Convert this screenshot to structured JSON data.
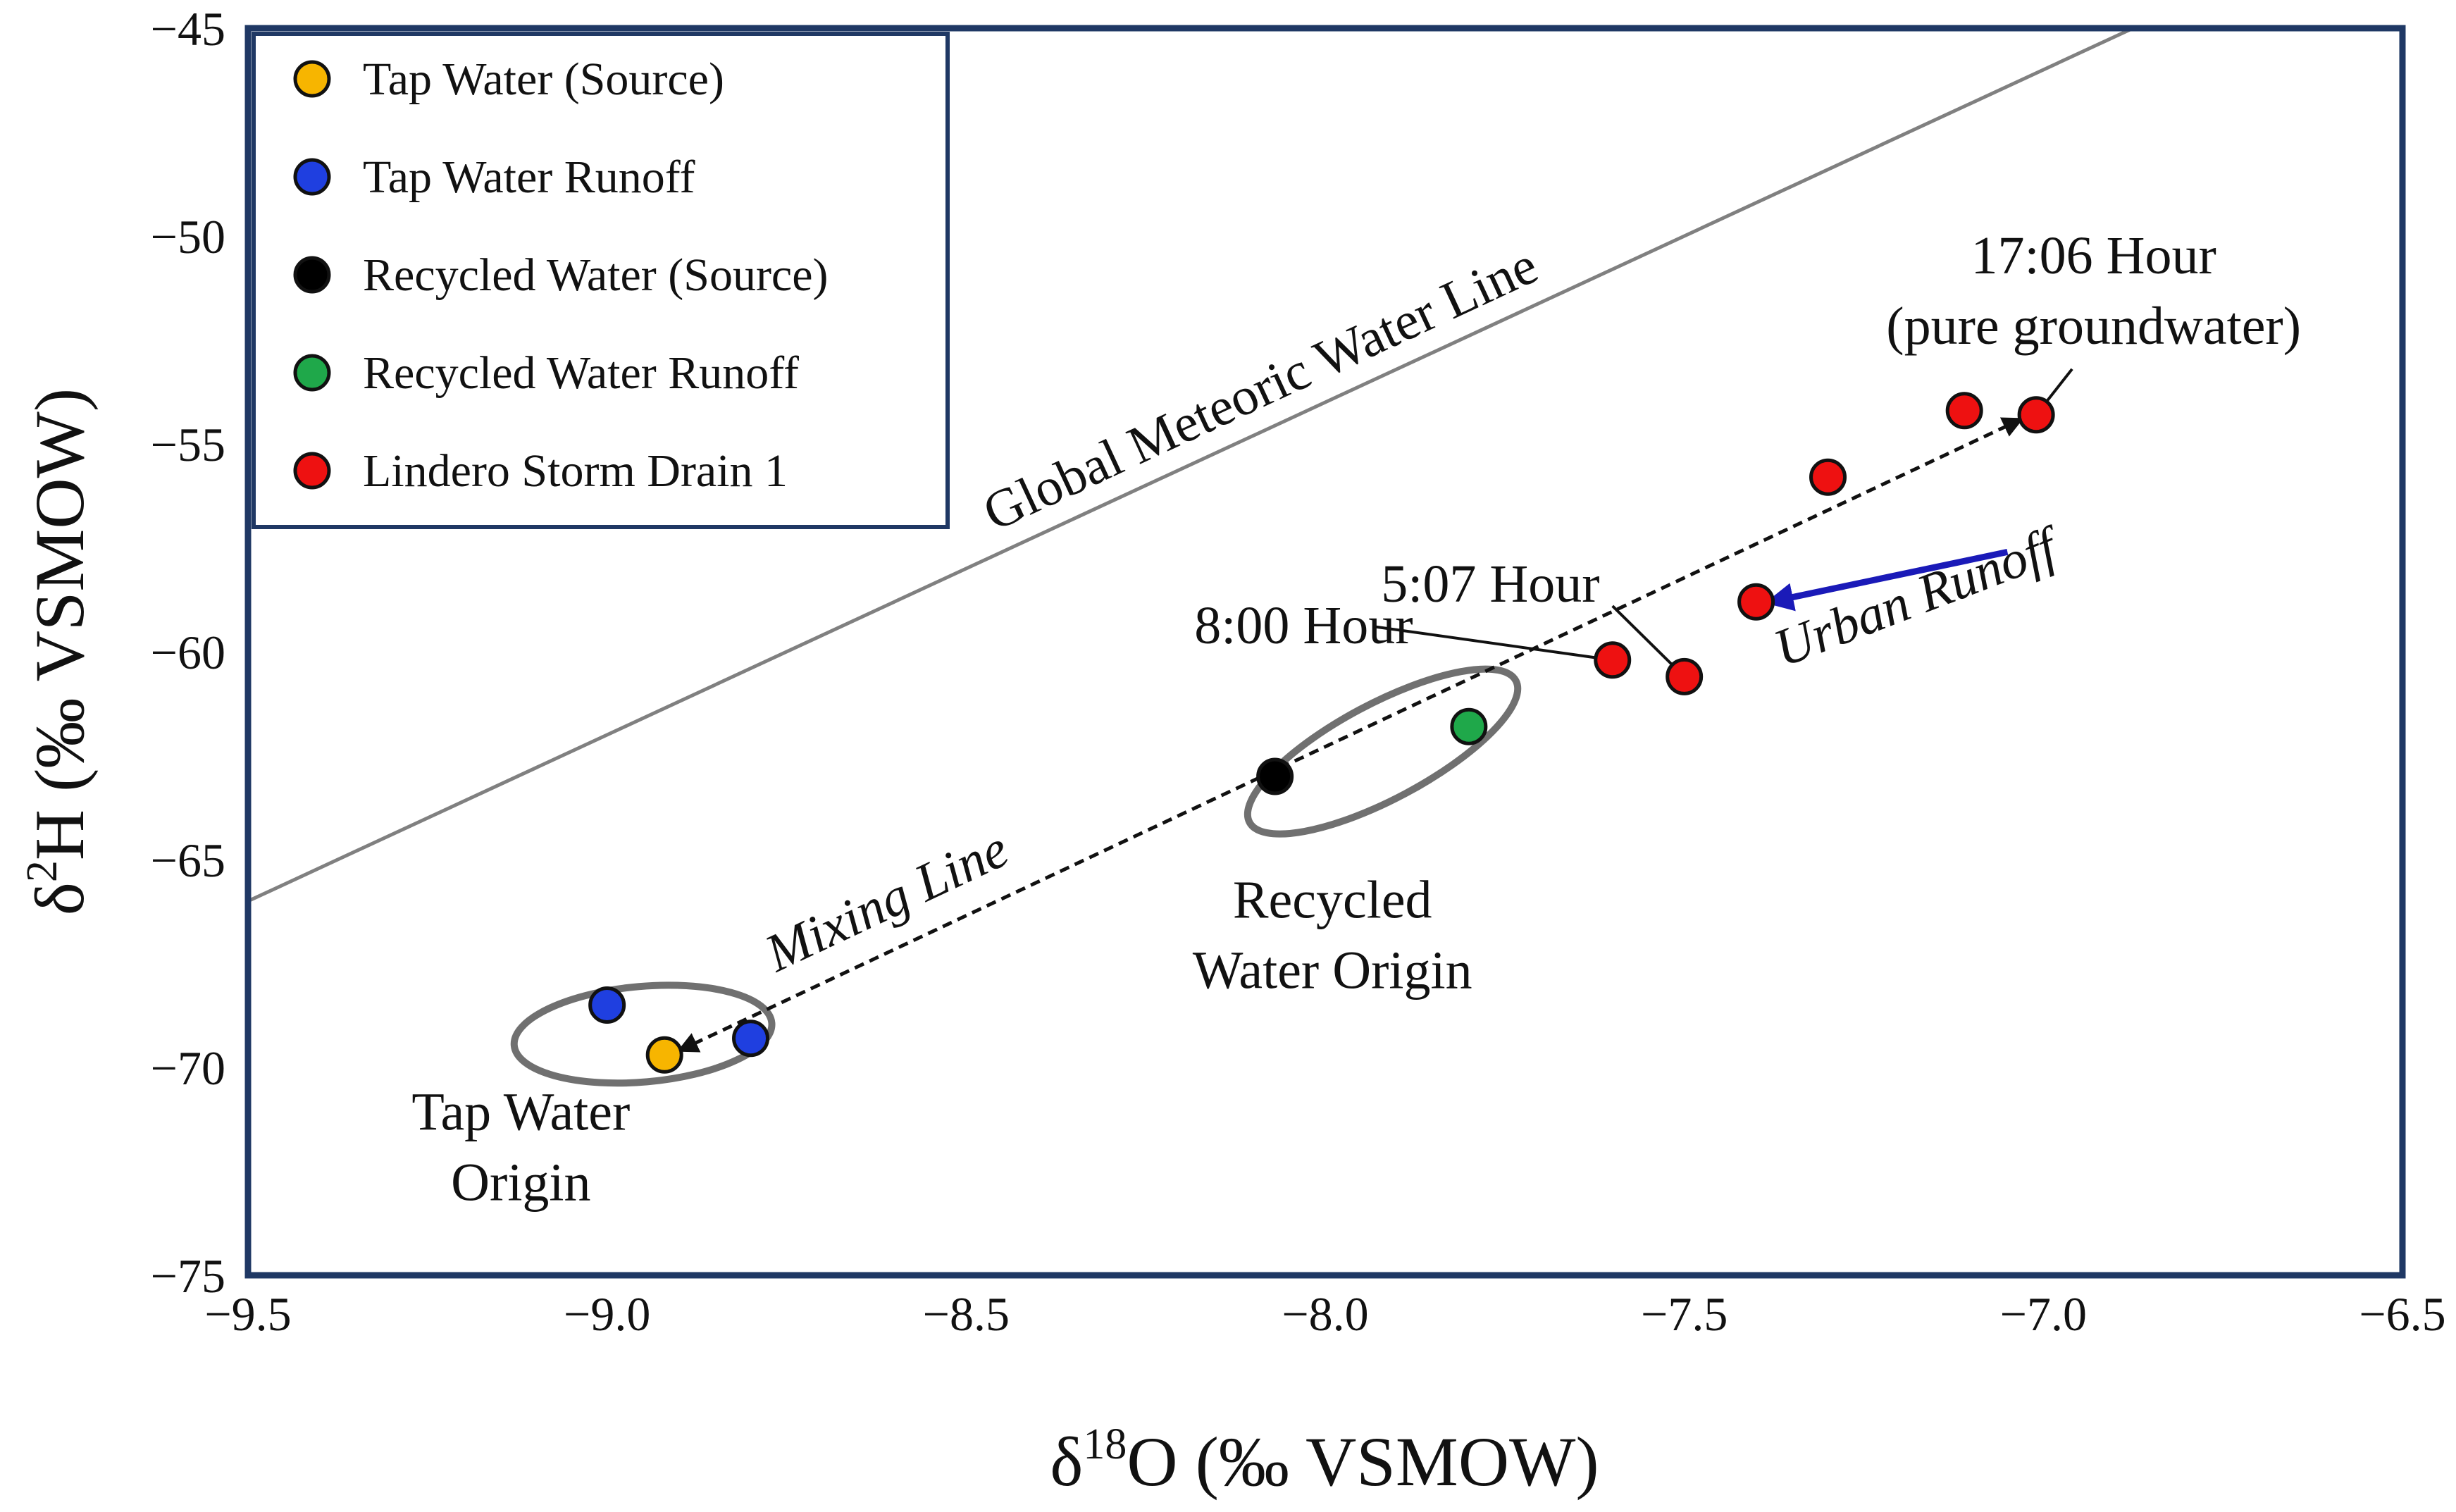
{
  "chart_data": {
    "type": "scatter",
    "xlabel_symbol": "δ",
    "xlabel_sup": "18",
    "xlabel_rest": "O (‰ VSMOW)",
    "ylabel_symbol": "δ",
    "ylabel_sup": "2",
    "ylabel_rest": "H (‰ VSMOW)",
    "xlim": [
      -9.5,
      -6.5
    ],
    "ylim": [
      -75,
      -45
    ],
    "x_ticks": [
      -9.5,
      -9.0,
      -8.5,
      -8.0,
      -7.5,
      -7.0,
      -6.5
    ],
    "x_tick_labels": [
      "−9.5",
      "−9.0",
      "−8.5",
      "−8.0",
      "−7.5",
      "−7.0",
      "−6.5"
    ],
    "y_ticks": [
      -45,
      -50,
      -55,
      -60,
      -65,
      -70,
      -75
    ],
    "y_tick_labels": [
      "−45",
      "−50",
      "−55",
      "−60",
      "−65",
      "−70",
      "−75"
    ],
    "grid": false,
    "legend_position": "top-left",
    "series": [
      {
        "name": "Tap Water (Source)",
        "color": "#F7B500",
        "points": [
          {
            "x": -8.92,
            "y": -69.7
          }
        ]
      },
      {
        "name": "Tap Water Runoff",
        "color": "#1F3FE0",
        "points": [
          {
            "x": -9.0,
            "y": -68.5
          },
          {
            "x": -8.8,
            "y": -69.3
          }
        ]
      },
      {
        "name": "Recycled Water (Source)",
        "color": "#000000",
        "points": [
          {
            "x": -8.07,
            "y": -63.0
          }
        ]
      },
      {
        "name": "Recycled Water Runoff",
        "color": "#1FA84A",
        "points": [
          {
            "x": -7.8,
            "y": -61.8
          }
        ]
      },
      {
        "name": "Lindero Storm Drain 1",
        "color": "#EE1111",
        "points": [
          {
            "x": -7.6,
            "y": -60.2
          },
          {
            "x": -7.5,
            "y": -60.6
          },
          {
            "x": -7.4,
            "y": -58.8
          },
          {
            "x": -7.3,
            "y": -55.8
          },
          {
            "x": -7.11,
            "y": -54.2
          },
          {
            "x": -7.01,
            "y": -54.3
          }
        ]
      }
    ],
    "gmwl": {
      "label": "Global Meteoric Water Line",
      "slope": 8,
      "intercept": 10,
      "color": "#808080"
    },
    "mixing_line": {
      "label": "Mixing Line",
      "from": {
        "x": -8.9,
        "y": -69.6
      },
      "to": {
        "x": -7.03,
        "y": -54.4
      }
    },
    "urban_runoff": {
      "label": "Urban Runoff",
      "from": {
        "x": -7.05,
        "y": -57.6
      },
      "to": {
        "x": -7.38,
        "y": -58.8
      },
      "color": "#1A1AB8"
    },
    "ellipses": [
      {
        "name": "tap-water-origin",
        "cx": -8.95,
        "cy": -69.2,
        "rx_data": 0.18,
        "ry_data": 2.3,
        "rotation_deg": -5
      },
      {
        "name": "recycled-water-origin",
        "cx": -7.92,
        "cy": -62.4,
        "rx_data": 0.21,
        "ry_data": 2.3,
        "rotation_deg": -28
      }
    ],
    "annotations": [
      {
        "name": "tap-water-origin",
        "lines": [
          "Tap Water",
          "Origin"
        ],
        "x": -9.12,
        "y": -71.5
      },
      {
        "name": "recycled-water-origin",
        "lines": [
          "Recycled",
          "Water Origin"
        ],
        "x": -7.99,
        "y": -66.4
      },
      {
        "name": "hour-1706",
        "lines": [
          "17:06 Hour",
          "(pure groundwater)"
        ],
        "x": -6.93,
        "y": -50.9,
        "pointer_from": {
          "x": -6.96,
          "y": -53.2
        },
        "pointer_to": {
          "x": -7.01,
          "y": -54.3
        }
      },
      {
        "name": "hour-0507",
        "lines": [
          "5:07 Hour"
        ],
        "x": -7.77,
        "y": -58.8,
        "pointer_from": {
          "x": -7.6,
          "y": -58.9
        },
        "pointer_to": {
          "x": -7.5,
          "y": -60.6
        }
      },
      {
        "name": "hour-0800",
        "lines": [
          "8:00 Hour"
        ],
        "x": -8.03,
        "y": -59.8,
        "pointer_from": {
          "x": -7.93,
          "y": -59.4
        },
        "pointer_to": {
          "x": -7.6,
          "y": -60.2
        }
      }
    ]
  }
}
